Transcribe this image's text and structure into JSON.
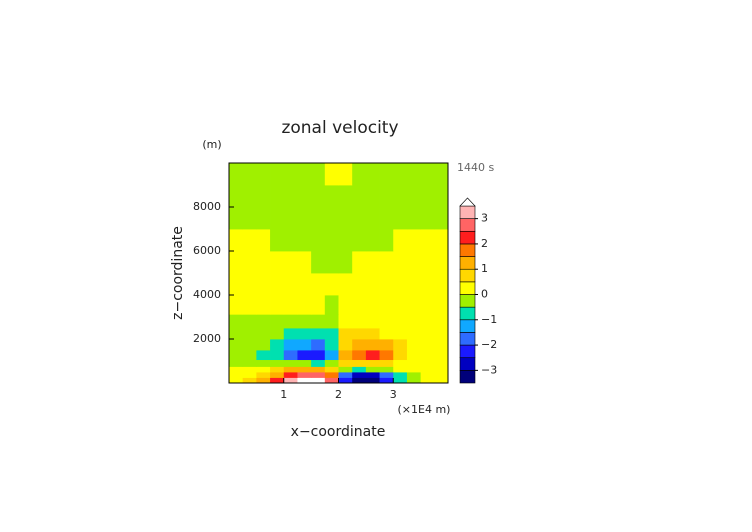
{
  "chart_data": {
    "type": "contour",
    "title": "zonal velocity",
    "y_unit": "(m)",
    "time_label": "1440 s",
    "xlabel": "x−coordinate",
    "ylabel": "z−coordinate",
    "x_unit": "(×1E4 m)",
    "xlim": [
      0,
      4
    ],
    "ylim": [
      0,
      10000
    ],
    "xticks": [
      1,
      2,
      3
    ],
    "yticks": [
      2000,
      4000,
      6000,
      8000
    ],
    "x": [
      0.125,
      0.375,
      0.625,
      0.875,
      1.125,
      1.375,
      1.625,
      1.875,
      2.125,
      2.375,
      2.625,
      2.875,
      3.125,
      3.375,
      3.625,
      3.875
    ],
    "y": [
      125,
      375,
      625,
      875,
      1250,
      1750,
      2250,
      2750,
      3500,
      4500,
      5500,
      6500,
      7500,
      8500,
      9500
    ],
    "z": [
      [
        0.3,
        0.5,
        1.2,
        2.0,
        3.0,
        3.8,
        3.8,
        2.5,
        -2.5,
        -3.8,
        -3.6,
        -2.2,
        -1.0,
        -0.3,
        0.2,
        0.3
      ],
      [
        0.2,
        0.3,
        0.7,
        1.3,
        2.2,
        2.8,
        2.8,
        1.8,
        -1.8,
        -2.8,
        -2.6,
        -1.6,
        -0.6,
        -0.1,
        0.2,
        0.2
      ],
      [
        0.1,
        0.2,
        0.3,
        0.6,
        1.0,
        1.2,
        1.0,
        0.6,
        -0.4,
        -0.6,
        -0.5,
        -0.3,
        0.1,
        0.2,
        0.2,
        0.2
      ],
      [
        -0.1,
        -0.2,
        -0.3,
        -0.3,
        -0.4,
        -0.5,
        -0.6,
        -0.4,
        0.5,
        0.7,
        0.7,
        0.5,
        0.3,
        0.2,
        0.2,
        0.2
      ],
      [
        -0.1,
        -0.3,
        -0.6,
        -1.0,
        -1.6,
        -2.2,
        -2.3,
        -1.2,
        1.0,
        1.8,
        2.0,
        1.5,
        0.8,
        0.4,
        0.2,
        0.2
      ],
      [
        -0.1,
        -0.2,
        -0.4,
        -0.8,
        -1.2,
        -1.5,
        -1.6,
        -1.0,
        0.8,
        1.3,
        1.3,
        1.0,
        0.6,
        0.3,
        0.2,
        0.2
      ],
      [
        -0.1,
        -0.1,
        -0.2,
        -0.3,
        -0.6,
        -0.8,
        -0.8,
        -0.6,
        0.5,
        0.7,
        0.6,
        0.4,
        0.3,
        0.2,
        0.2,
        0.2
      ],
      [
        -0.1,
        -0.1,
        -0.1,
        -0.2,
        -0.2,
        -0.3,
        -0.3,
        -0.3,
        0.2,
        0.3,
        0.2,
        0.2,
        0.2,
        0.2,
        0.2,
        0.2
      ],
      [
        0.1,
        0.1,
        0.1,
        0.1,
        0.1,
        0.1,
        0.1,
        -0.1,
        0.1,
        0.2,
        0.2,
        0.2,
        0.2,
        0.2,
        0.1,
        0.1
      ],
      [
        0.2,
        0.2,
        0.2,
        0.2,
        0.2,
        0.2,
        0.2,
        0.1,
        0.2,
        0.2,
        0.2,
        0.2,
        0.2,
        0.2,
        0.2,
        0.2
      ],
      [
        0.2,
        0.2,
        0.2,
        0.2,
        0.2,
        0.1,
        -0.1,
        -0.1,
        -0.1,
        0.1,
        0.2,
        0.2,
        0.2,
        0.2,
        0.2,
        0.2
      ],
      [
        0.1,
        0.1,
        0.1,
        -0.1,
        -0.1,
        -0.1,
        -0.1,
        -0.1,
        -0.1,
        -0.1,
        -0.1,
        -0.1,
        0.1,
        0.1,
        0.1,
        0.1
      ],
      [
        -0.1,
        -0.1,
        -0.1,
        -0.1,
        -0.1,
        -0.1,
        -0.1,
        -0.1,
        -0.1,
        -0.1,
        -0.1,
        -0.1,
        -0.1,
        -0.1,
        -0.1,
        -0.1
      ],
      [
        -0.1,
        -0.1,
        -0.1,
        -0.1,
        -0.1,
        -0.1,
        -0.1,
        -0.1,
        -0.1,
        -0.1,
        -0.1,
        -0.1,
        -0.1,
        -0.1,
        -0.1,
        -0.1
      ],
      [
        -0.1,
        -0.1,
        -0.1,
        -0.1,
        -0.1,
        -0.1,
        -0.1,
        0.1,
        0.1,
        -0.1,
        -0.1,
        -0.1,
        -0.1,
        -0.1,
        -0.1,
        -0.1
      ]
    ],
    "levels": [
      -3,
      -2.5,
      -2,
      -1.5,
      -1,
      -0.5,
      0,
      0.5,
      1,
      1.5,
      2,
      2.5,
      3,
      3.5
    ],
    "colors": [
      "#00007a",
      "#0000c0",
      "#1a1aff",
      "#2e6cff",
      "#10a8ff",
      "#00e0b0",
      "#a0f000",
      "#ffff00",
      "#ffd800",
      "#ffb000",
      "#ff7800",
      "#ff1e1e",
      "#ff6464",
      "#ffb4b4",
      "#ffffff"
    ],
    "colorbar_lim": [
      -3.5,
      3.5
    ],
    "colorbar_ticks": [
      {
        "value": -3,
        "label": "−3"
      },
      {
        "value": -2,
        "label": "−2"
      },
      {
        "value": -1,
        "label": "−1"
      },
      0,
      1,
      2,
      3
    ]
  }
}
